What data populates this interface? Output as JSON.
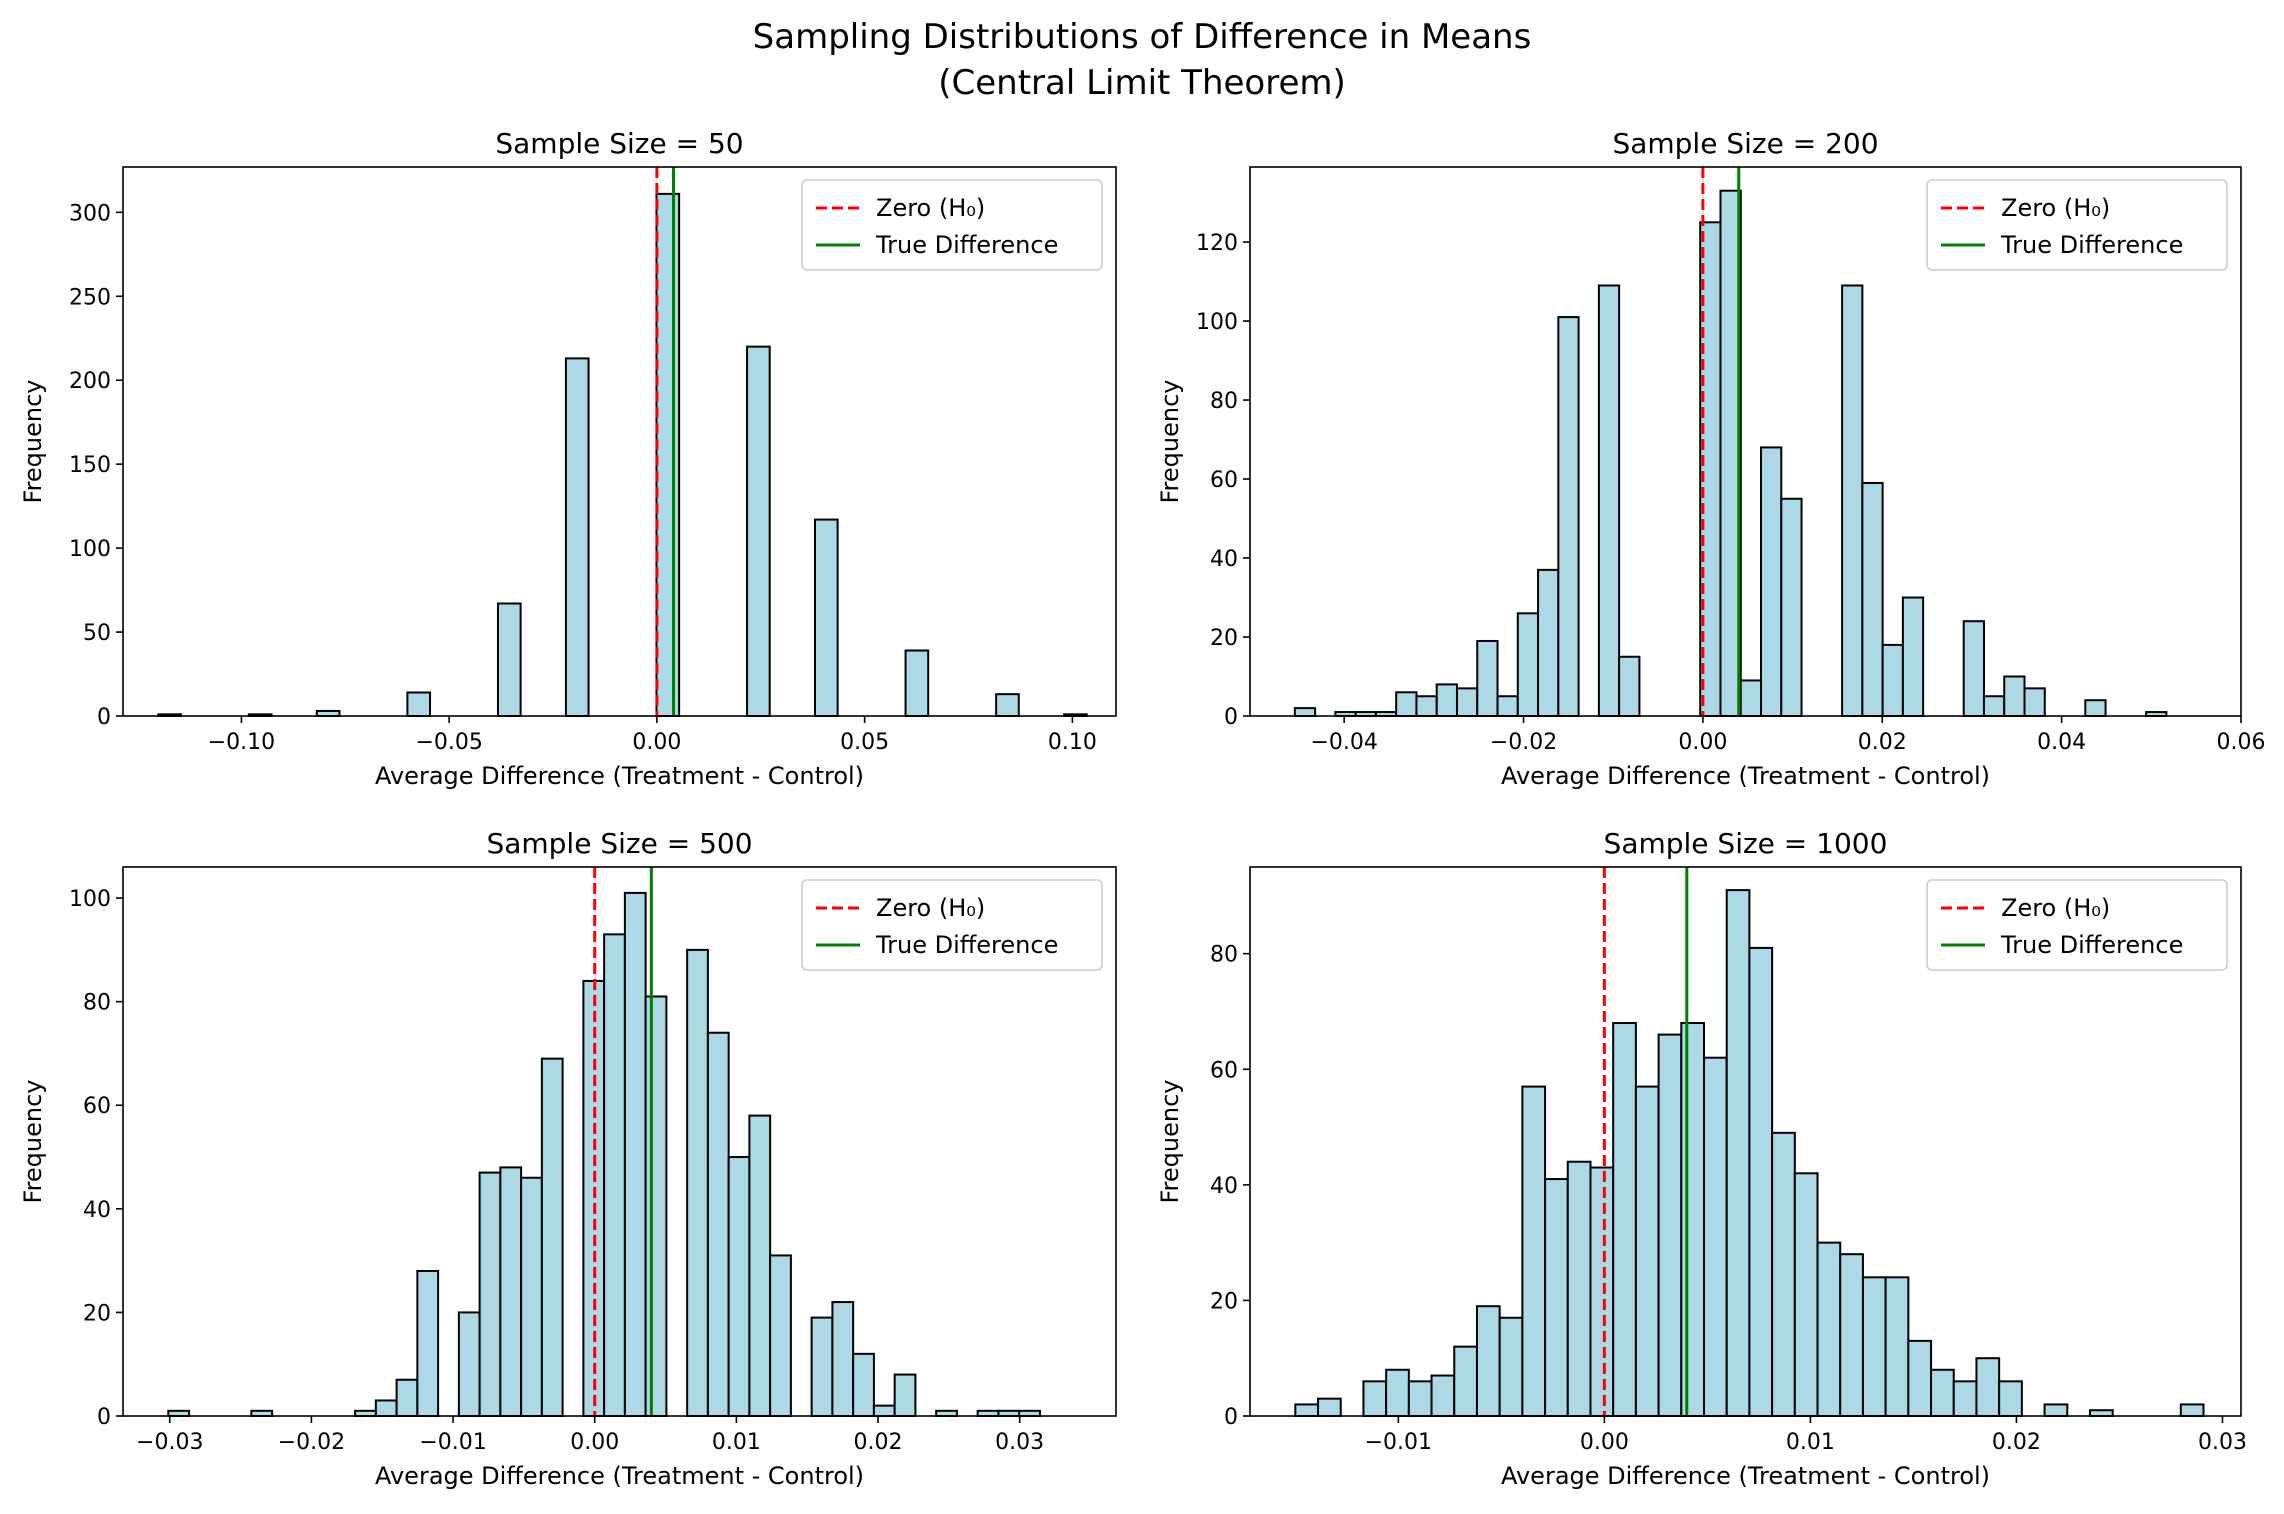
{
  "figure": {
    "title_line1": "Sampling Distributions of Difference in Means",
    "title_line2": "(Central Limit Theorem)"
  },
  "colors": {
    "bar_fill": "#add8e6",
    "bar_edge": "#000000",
    "zero_line": "#ff0000",
    "true_line": "#008000"
  },
  "chart_data": [
    {
      "type": "bar",
      "title": "Sample Size = 50",
      "xlabel": "Average Difference (Treatment - Control)",
      "ylabel": "Frequency",
      "xlim": [
        -0.1285,
        0.1105
      ],
      "ylim": [
        0,
        327
      ],
      "xticks": [
        -0.1,
        -0.05,
        0.0,
        0.05,
        0.1
      ],
      "xtick_labels": [
        "−0.10",
        "−0.05",
        "0.00",
        "0.05",
        "0.10"
      ],
      "yticks": [
        0,
        50,
        100,
        150,
        200,
        250,
        300
      ],
      "ytick_labels": [
        "0",
        "50",
        "100",
        "150",
        "200",
        "250",
        "300"
      ],
      "bin_start": -0.12,
      "bin_width": 0.00545,
      "bins": [
        [
          0,
          1
        ],
        [
          4,
          1
        ],
        [
          7,
          3
        ],
        [
          11,
          14
        ],
        [
          15,
          67
        ],
        [
          18,
          213
        ],
        [
          22,
          311
        ],
        [
          26,
          220
        ],
        [
          29,
          117
        ],
        [
          33,
          39
        ],
        [
          37,
          13
        ],
        [
          40,
          1
        ]
      ],
      "zero_line": 0.0,
      "true_difference": 0.004,
      "legend": [
        "Zero (H₀)",
        "True Difference"
      ],
      "legend_position": "upper right"
    },
    {
      "type": "bar",
      "title": "Sample Size = 200",
      "xlabel": "Average Difference (Treatment - Control)",
      "ylabel": "Frequency",
      "xlim": [
        -0.0505,
        0.06
      ],
      "ylim": [
        0,
        139
      ],
      "xticks": [
        -0.04,
        -0.02,
        0.0,
        0.02,
        0.04,
        0.06
      ],
      "xtick_labels": [
        "−0.04",
        "−0.02",
        "0.00",
        "0.02",
        "0.04",
        "0.06"
      ],
      "yticks": [
        0,
        20,
        40,
        60,
        80,
        100,
        120
      ],
      "ytick_labels": [
        "0",
        "20",
        "40",
        "60",
        "80",
        "100",
        "120"
      ],
      "bin_start": -0.0455,
      "bin_width": 0.00226,
      "bins": [
        [
          0,
          2
        ],
        [
          1,
          0
        ],
        [
          2,
          1
        ],
        [
          3,
          1
        ],
        [
          4,
          1
        ],
        [
          5,
          6
        ],
        [
          6,
          5
        ],
        [
          7,
          8
        ],
        [
          8,
          7
        ],
        [
          9,
          19
        ],
        [
          10,
          5
        ],
        [
          11,
          26
        ],
        [
          12,
          37
        ],
        [
          13,
          101
        ],
        [
          14,
          0
        ],
        [
          15,
          109
        ],
        [
          16,
          15
        ],
        [
          17,
          0
        ],
        [
          18,
          0
        ],
        [
          19,
          0
        ],
        [
          20,
          125
        ],
        [
          21,
          133
        ],
        [
          22,
          9
        ],
        [
          23,
          68
        ],
        [
          24,
          55
        ],
        [
          25,
          0
        ],
        [
          26,
          0
        ],
        [
          27,
          109
        ],
        [
          28,
          59
        ],
        [
          29,
          18
        ],
        [
          30,
          30
        ],
        [
          31,
          0
        ],
        [
          32,
          0
        ],
        [
          33,
          24
        ],
        [
          34,
          5
        ],
        [
          35,
          10
        ],
        [
          36,
          7
        ],
        [
          37,
          0
        ],
        [
          38,
          0
        ],
        [
          39,
          4
        ],
        [
          40,
          0
        ],
        [
          41,
          0
        ],
        [
          42,
          1
        ]
      ],
      "zero_line": 0.0,
      "true_difference": 0.004,
      "legend": [
        "Zero (H₀)",
        "True Difference"
      ],
      "legend_position": "upper right"
    },
    {
      "type": "bar",
      "title": "Sample Size = 500",
      "xlabel": "Average Difference (Treatment - Control)",
      "ylabel": "Frequency",
      "xlim": [
        -0.0333,
        0.0368
      ],
      "ylim": [
        0,
        106
      ],
      "xticks": [
        -0.03,
        -0.02,
        -0.01,
        0.0,
        0.01,
        0.02,
        0.03
      ],
      "xtick_labels": [
        "−0.03",
        "−0.02",
        "−0.01",
        "0.00",
        "0.01",
        "0.02",
        "0.03"
      ],
      "yticks": [
        0,
        20,
        40,
        60,
        80,
        100
      ],
      "ytick_labels": [
        "0",
        "20",
        "40",
        "60",
        "80",
        "100"
      ],
      "bin_start": -0.0301,
      "bin_width": 0.001465,
      "bins": [
        [
          0,
          1
        ],
        [
          1,
          0
        ],
        [
          2,
          0
        ],
        [
          3,
          0
        ],
        [
          4,
          1
        ],
        [
          5,
          0
        ],
        [
          6,
          0
        ],
        [
          7,
          0
        ],
        [
          8,
          0
        ],
        [
          9,
          1
        ],
        [
          10,
          3
        ],
        [
          11,
          7
        ],
        [
          12,
          28
        ],
        [
          13,
          0
        ],
        [
          14,
          20
        ],
        [
          15,
          47
        ],
        [
          16,
          48
        ],
        [
          17,
          46
        ],
        [
          18,
          69
        ],
        [
          19,
          0
        ],
        [
          20,
          84
        ],
        [
          21,
          93
        ],
        [
          22,
          101
        ],
        [
          23,
          81
        ],
        [
          24,
          0
        ],
        [
          25,
          90
        ],
        [
          26,
          74
        ],
        [
          27,
          50
        ],
        [
          28,
          58
        ],
        [
          29,
          31
        ],
        [
          30,
          0
        ],
        [
          31,
          19
        ],
        [
          32,
          22
        ],
        [
          33,
          12
        ],
        [
          34,
          2
        ],
        [
          35,
          8
        ],
        [
          36,
          0
        ],
        [
          37,
          1
        ],
        [
          38,
          0
        ],
        [
          39,
          1
        ],
        [
          40,
          1
        ],
        [
          41,
          1
        ]
      ],
      "zero_line": 0.0,
      "true_difference": 0.004,
      "legend": [
        "Zero (H₀)",
        "True Difference"
      ],
      "legend_position": "upper right"
    },
    {
      "type": "bar",
      "title": "Sample Size = 1000",
      "xlabel": "Average Difference (Treatment - Control)",
      "ylabel": "Frequency",
      "xlim": [
        -0.0172,
        0.0309
      ],
      "ylim": [
        0,
        95
      ],
      "xticks": [
        -0.01,
        0.0,
        0.01,
        0.02,
        0.03
      ],
      "xtick_labels": [
        "−0.01",
        "0.00",
        "0.01",
        "0.02",
        "0.03"
      ],
      "yticks": [
        0,
        20,
        40,
        60,
        80
      ],
      "ytick_labels": [
        "0",
        "20",
        "40",
        "60",
        "80"
      ],
      "bin_start": -0.015,
      "bin_width": 0.001102,
      "bins": [
        [
          0,
          2
        ],
        [
          1,
          3
        ],
        [
          2,
          0
        ],
        [
          3,
          6
        ],
        [
          4,
          8
        ],
        [
          5,
          6
        ],
        [
          6,
          7
        ],
        [
          7,
          12
        ],
        [
          8,
          19
        ],
        [
          9,
          17
        ],
        [
          10,
          57
        ],
        [
          11,
          41
        ],
        [
          12,
          44
        ],
        [
          13,
          43
        ],
        [
          14,
          68
        ],
        [
          15,
          57
        ],
        [
          16,
          66
        ],
        [
          17,
          68
        ],
        [
          18,
          62
        ],
        [
          19,
          91
        ],
        [
          20,
          81
        ],
        [
          21,
          49
        ],
        [
          22,
          42
        ],
        [
          23,
          30
        ],
        [
          24,
          28
        ],
        [
          25,
          24
        ],
        [
          26,
          24
        ],
        [
          27,
          13
        ],
        [
          28,
          8
        ],
        [
          29,
          6
        ],
        [
          30,
          10
        ],
        [
          31,
          6
        ],
        [
          32,
          0
        ],
        [
          33,
          2
        ],
        [
          34,
          0
        ],
        [
          35,
          1
        ],
        [
          36,
          0
        ],
        [
          37,
          0
        ],
        [
          38,
          0
        ],
        [
          39,
          2
        ]
      ],
      "zero_line": 0.0,
      "true_difference": 0.004,
      "legend": [
        "Zero (H₀)",
        "True Difference"
      ],
      "legend_position": "upper right"
    }
  ]
}
